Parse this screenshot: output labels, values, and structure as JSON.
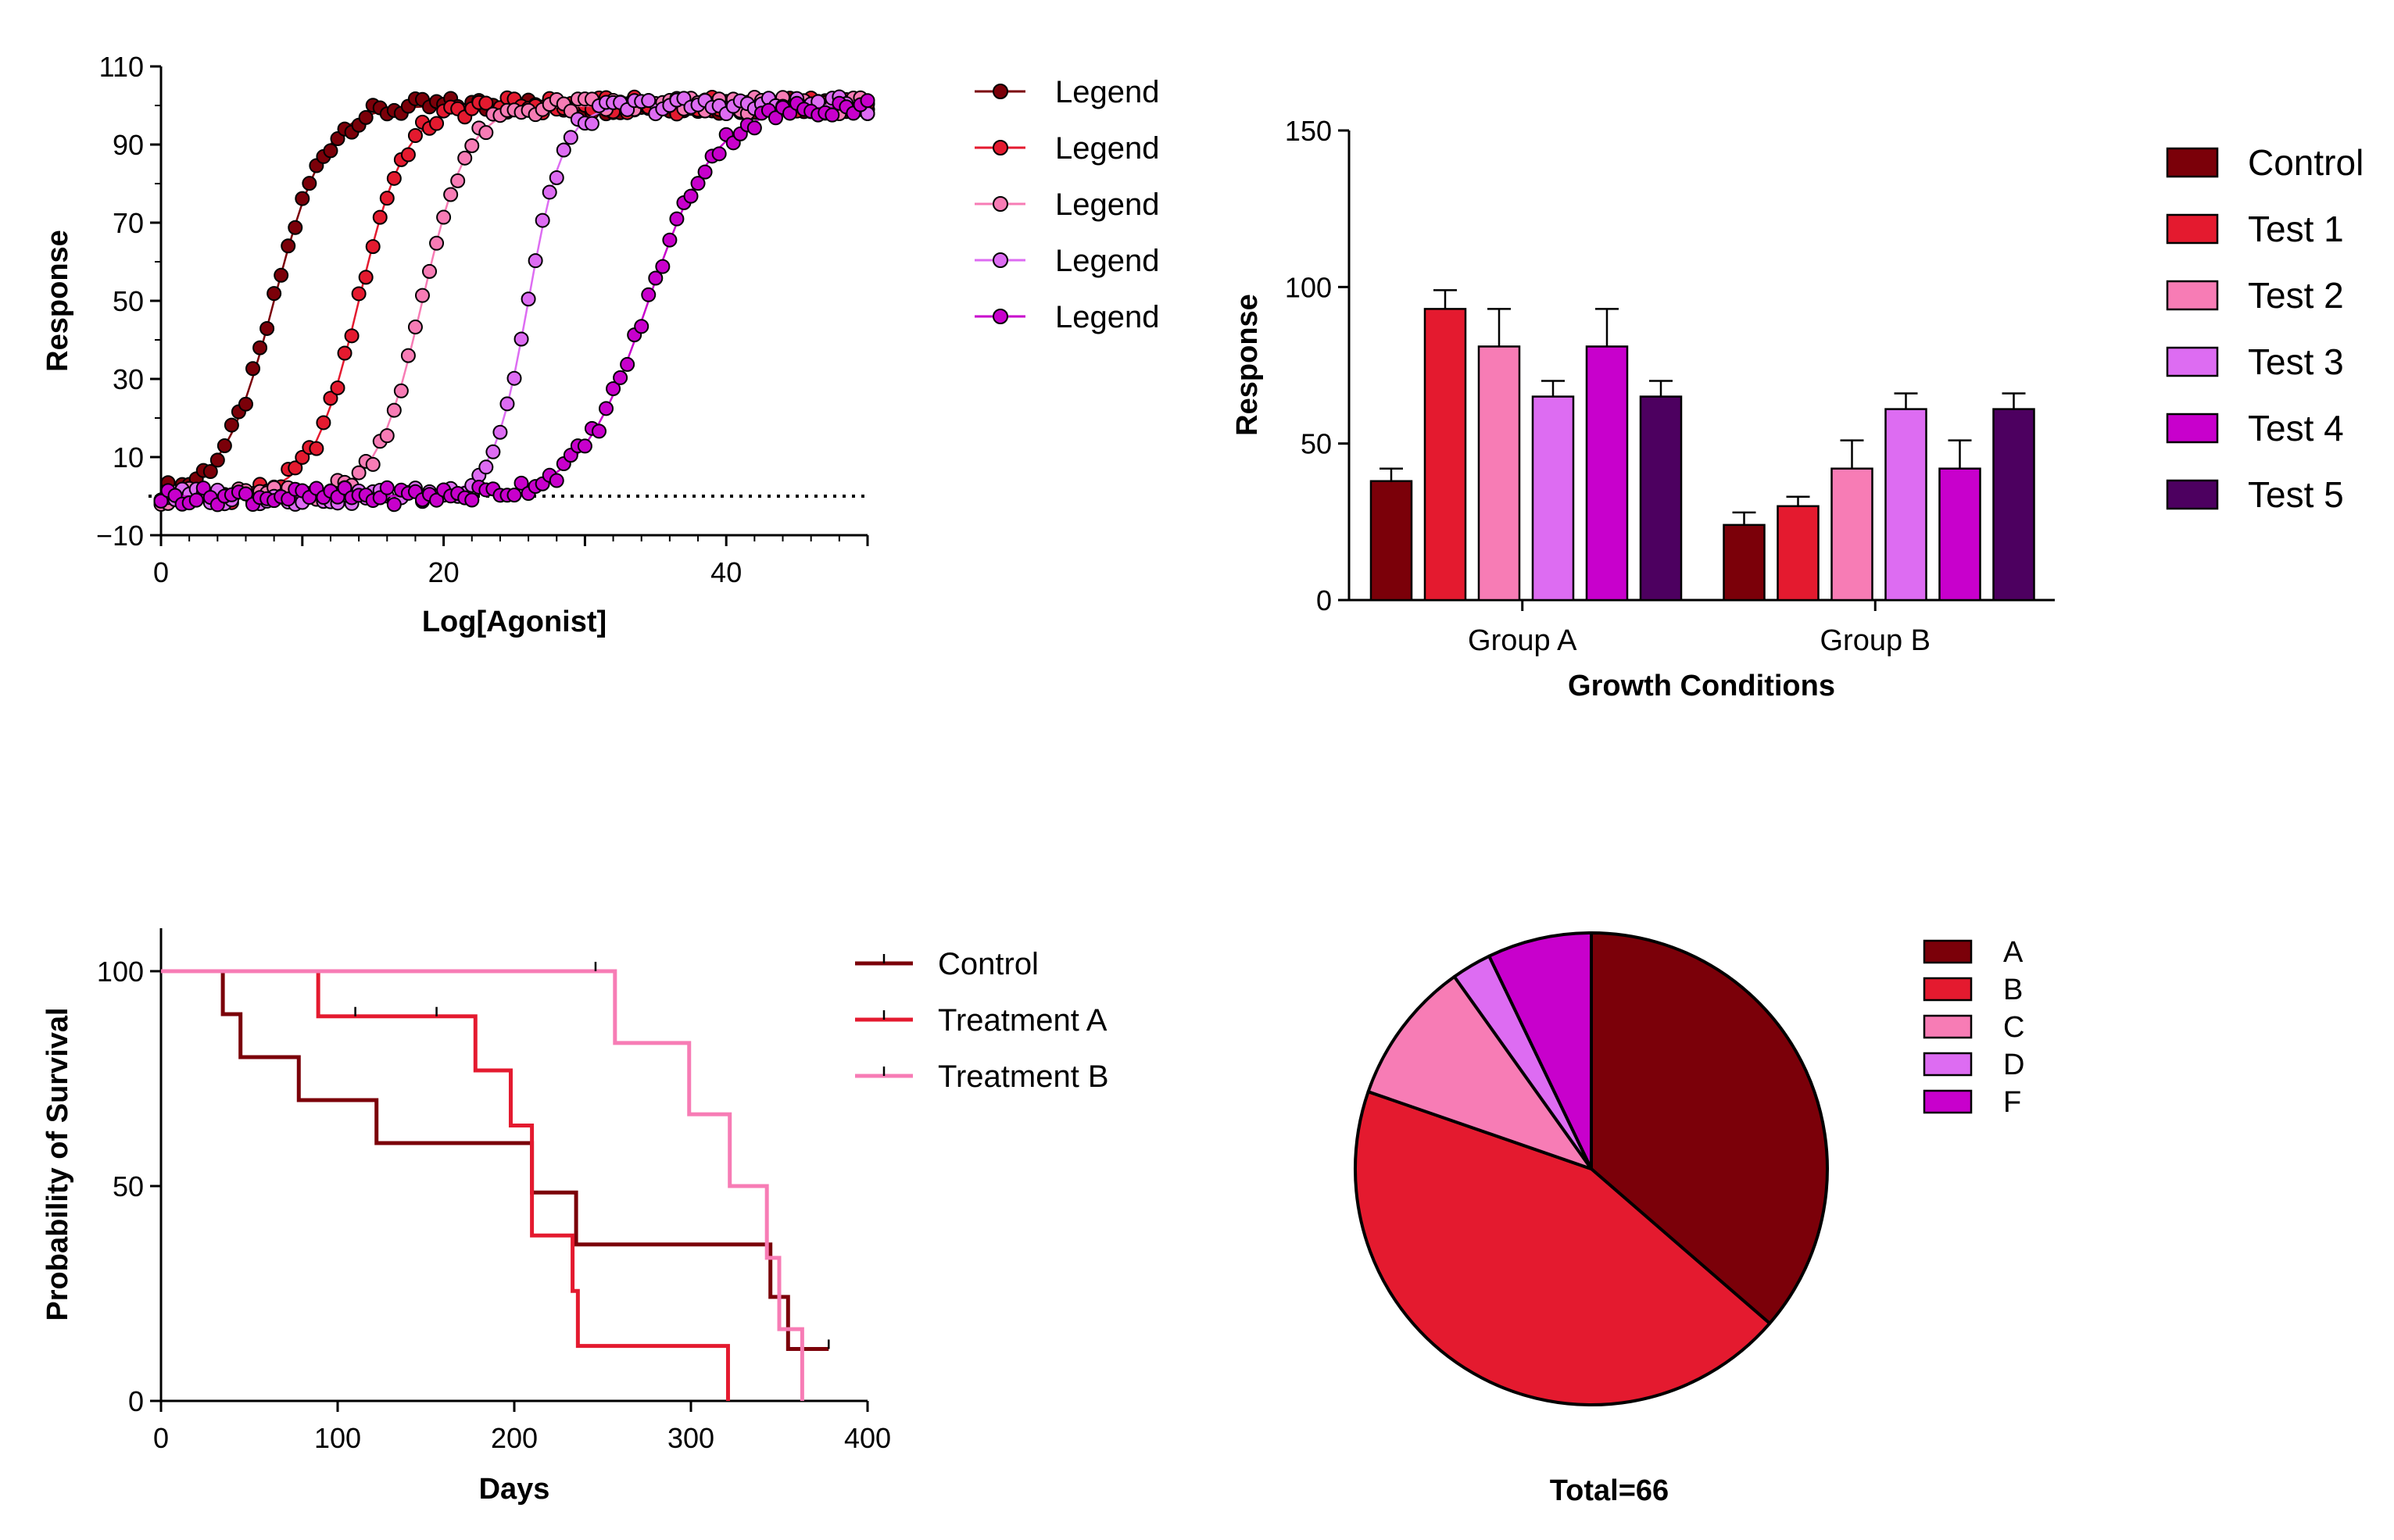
{
  "palette": {
    "maroon": "#7b0009",
    "red": "#e41a2f",
    "pink": "#f77cb5",
    "lavender": "#dd6cf2",
    "magenta": "#c800cc",
    "purple": "#4d0060"
  },
  "chart_data": [
    {
      "id": "dose_response",
      "type": "scatter",
      "title": "",
      "xlabel": "Log[Agonist]",
      "ylabel": "Response",
      "xlim": [
        0,
        50
      ],
      "ylim": [
        -10,
        110
      ],
      "x_ticks": [
        "0",
        "20",
        "40"
      ],
      "x_tick_values": [
        0,
        20,
        40
      ],
      "y_ticks": [
        "−10",
        "10",
        "30",
        "50",
        "70",
        "90",
        "110"
      ],
      "y_tick_values": [
        -10,
        10,
        30,
        50,
        70,
        90,
        110
      ],
      "baseline": 0,
      "baseline_style": "dotted",
      "legend_position": "right",
      "x_step": 0.5,
      "series": [
        {
          "name": "Legend",
          "color": "#7b0009",
          "ec50": 8,
          "hill": 0.55,
          "ymin": 0,
          "ymax": 100
        },
        {
          "name": "Legend",
          "color": "#e41a2f",
          "ec50": 14,
          "hill": 0.6,
          "ymin": 0,
          "ymax": 100
        },
        {
          "name": "Legend",
          "color": "#f77cb5",
          "ec50": 18.5,
          "hill": 0.62,
          "ymin": 0,
          "ymax": 100
        },
        {
          "name": "Legend",
          "color": "#dd6cf2",
          "ec50": 26,
          "hill": 0.8,
          "ymin": 0,
          "ymax": 100
        },
        {
          "name": "Legend",
          "color": "#c800cc",
          "ec50": 34.5,
          "hill": 0.42,
          "ymin": 0,
          "ymax": 100
        }
      ]
    },
    {
      "id": "grouped_bar",
      "type": "bar",
      "title": "",
      "xlabel": "Growth Conditions",
      "ylabel": "Response",
      "ylim": [
        0,
        150
      ],
      "y_ticks": [
        "0",
        "50",
        "100",
        "150"
      ],
      "y_tick_values": [
        0,
        50,
        100,
        150
      ],
      "categories": [
        "Group A",
        "Group B"
      ],
      "legend_position": "right",
      "series": [
        {
          "name": "Control",
          "color": "#7b0009",
          "values": [
            38,
            24
          ],
          "errors": [
            4,
            4
          ]
        },
        {
          "name": "Test 1",
          "color": "#e41a2f",
          "values": [
            93,
            30
          ],
          "errors": [
            6,
            3
          ]
        },
        {
          "name": "Test 2",
          "color": "#f77cb5",
          "values": [
            81,
            42
          ],
          "errors": [
            12,
            9
          ]
        },
        {
          "name": "Test 3",
          "color": "#dd6cf2",
          "values": [
            65,
            61
          ],
          "errors": [
            5,
            5
          ]
        },
        {
          "name": "Test 4",
          "color": "#c800cc",
          "values": [
            81,
            42
          ],
          "errors": [
            12,
            9
          ]
        },
        {
          "name": "Test 5",
          "color": "#4d0060",
          "values": [
            65,
            61
          ],
          "errors": [
            5,
            5
          ]
        }
      ]
    },
    {
      "id": "survival",
      "type": "line",
      "title": "",
      "xlabel": "Days",
      "ylabel": "Probability of Survival",
      "xlim": [
        0,
        400
      ],
      "ylim": [
        0,
        110
      ],
      "x_ticks": [
        "0",
        "100",
        "200",
        "300",
        "400"
      ],
      "x_tick_values": [
        0,
        100,
        200,
        300,
        400
      ],
      "y_ticks": [
        "0",
        "50",
        "100"
      ],
      "y_tick_values": [
        0,
        50,
        100
      ],
      "legend_position": "right",
      "series": [
        {
          "name": "Control",
          "color": "#7b0009",
          "steps": [
            [
              0,
              100
            ],
            [
              35,
              90
            ],
            [
              45,
              80
            ],
            [
              78,
              70
            ],
            [
              122,
              60
            ],
            [
              210,
              48.5
            ],
            [
              235,
              36.4
            ],
            [
              345,
              24.2
            ],
            [
              355,
              12.1
            ],
            [
              378,
              12.1
            ]
          ],
          "censored": [
            [
              378,
              12.1
            ]
          ]
        },
        {
          "name": "Treatment A",
          "color": "#e41a2f",
          "steps": [
            [
              0,
              100
            ],
            [
              89,
              89.5
            ],
            [
              178,
              76.9
            ],
            [
              198,
              64.1
            ],
            [
              210,
              38.5
            ],
            [
              233,
              25.6
            ],
            [
              236,
              12.8
            ],
            [
              321,
              0
            ]
          ],
          "censored": [
            [
              110,
              89.5
            ],
            [
              156,
              89.5
            ]
          ]
        },
        {
          "name": "Treatment B",
          "color": "#f77cb5",
          "steps": [
            [
              0,
              100
            ],
            [
              257,
              83.3
            ],
            [
              299,
              66.7
            ],
            [
              322,
              50
            ],
            [
              343,
              33.3
            ],
            [
              350,
              16.7
            ],
            [
              363,
              0
            ]
          ],
          "censored": [
            [
              246,
              100
            ]
          ]
        }
      ]
    },
    {
      "id": "pie",
      "type": "pie",
      "title": "Total=66",
      "legend_position": "right",
      "slices": [
        {
          "label": "A",
          "value": 24,
          "color": "#7b0009"
        },
        {
          "label": "B",
          "value": 29,
          "color": "#e41a2f"
        },
        {
          "label": "C",
          "value": 6.5,
          "color": "#f77cb5"
        },
        {
          "label": "D",
          "value": 1.8,
          "color": "#dd6cf2"
        },
        {
          "label": "F",
          "value": 4.7,
          "color": "#c800cc"
        }
      ]
    }
  ]
}
